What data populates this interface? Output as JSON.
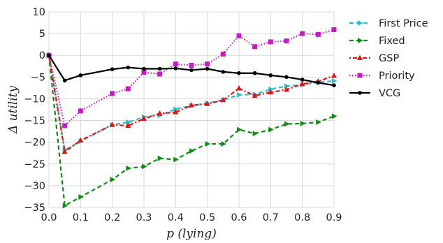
{
  "chart_data": {
    "type": "line",
    "xlabel": "p (lying)",
    "ylabel": "Δ utility",
    "xlim": [
      0.0,
      0.9
    ],
    "ylim": [
      -35,
      10
    ],
    "xticks": [
      "0.0",
      "0.1",
      "0.2",
      "0.3",
      "0.4",
      "0.5",
      "0.6",
      "0.7",
      "0.8",
      "0.9"
    ],
    "yticks": [
      "10",
      "5",
      "0",
      "−5",
      "−10",
      "−15",
      "−20",
      "−25",
      "−30",
      "−35"
    ],
    "grid": true,
    "legend_position": "outside-right",
    "x": [
      0.0,
      0.05,
      0.1,
      0.2,
      0.25,
      0.3,
      0.35,
      0.4,
      0.45,
      0.5,
      0.55,
      0.6,
      0.65,
      0.7,
      0.75,
      0.8,
      0.85,
      0.9
    ],
    "series": [
      {
        "name": "First Price",
        "color": "#2ebdc9",
        "dash": "6,4",
        "marker": "tri-right",
        "values": [
          0,
          -21.8,
          -19.8,
          -16.0,
          -15.4,
          -14.2,
          -13.8,
          -12.4,
          -11.6,
          -11.0,
          -10.3,
          -9.1,
          -9.0,
          -7.8,
          -7.1,
          -6.8,
          -6.2,
          -5.9
        ]
      },
      {
        "name": "Fixed",
        "color": "#138a13",
        "dash": "6,4",
        "marker": "tri-right",
        "values": [
          0,
          -34.6,
          -32.6,
          -28.6,
          -26.0,
          -25.6,
          -23.7,
          -24.0,
          -22.0,
          -20.4,
          -20.4,
          -17.1,
          -18.0,
          -17.1,
          -15.8,
          -15.7,
          -15.4,
          -14.0
        ]
      },
      {
        "name": "GSP",
        "color": "#e01414",
        "dash": "2,3,6,3",
        "marker": "tri-up",
        "values": [
          0,
          -22.2,
          -19.6,
          -16.0,
          -16.2,
          -14.6,
          -13.4,
          -13.1,
          -11.5,
          -11.2,
          -10.3,
          -7.6,
          -9.3,
          -8.5,
          -7.9,
          -6.6,
          -6.0,
          -4.7
        ]
      },
      {
        "name": "Priority",
        "color": "#c21cc2",
        "dash": "1.5,2.5",
        "marker": "square",
        "values": [
          0,
          -16.2,
          -12.8,
          -8.8,
          -7.7,
          -3.9,
          -4.3,
          -2.0,
          -2.3,
          -2.0,
          0.3,
          4.5,
          2.0,
          3.1,
          3.3,
          5.0,
          4.8,
          5.9
        ]
      },
      {
        "name": "VCG",
        "color": "#000000",
        "dash": "",
        "marker": "dot",
        "values": [
          0,
          -5.8,
          -4.6,
          -3.2,
          -2.8,
          -3.1,
          -3.1,
          -3.0,
          -3.4,
          -3.1,
          -3.8,
          -4.1,
          -4.1,
          -4.6,
          -5.0,
          -5.6,
          -6.3,
          -6.9
        ]
      }
    ]
  }
}
